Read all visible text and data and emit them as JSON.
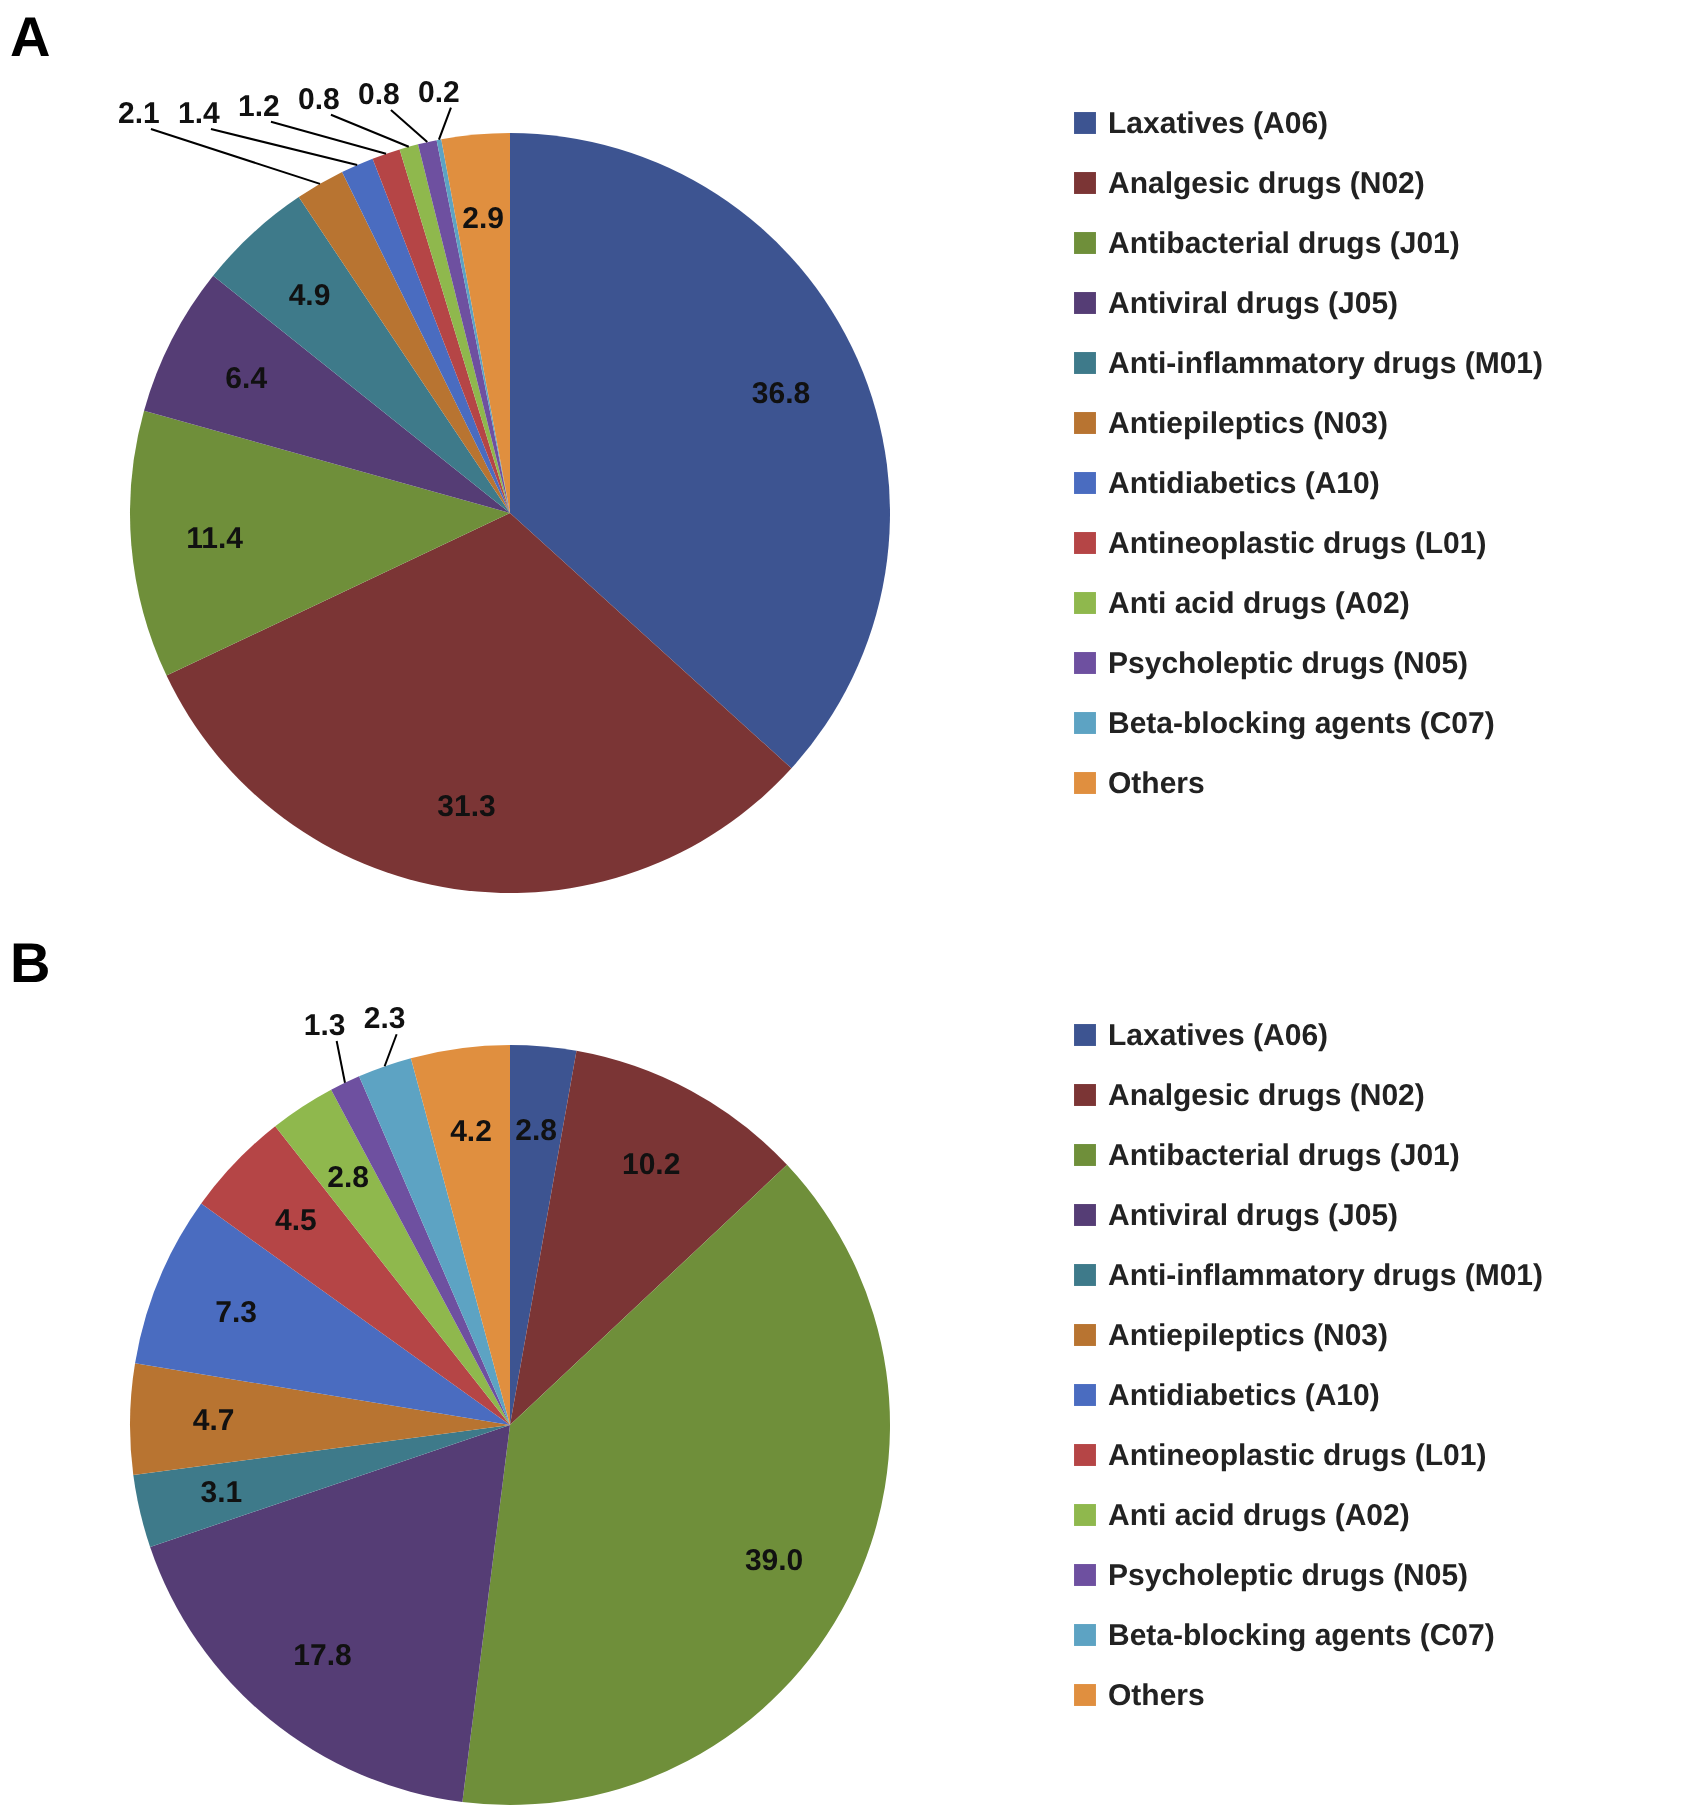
{
  "chart_data": [
    {
      "type": "pie",
      "title": "A",
      "categories": [
        "Laxatives (A06)",
        "Analgesic drugs (N02)",
        "Antibacterial drugs (J01)",
        "Antiviral drugs (J05)",
        "Anti-inflammatory drugs (M01)",
        "Antiepileptics (N03)",
        "Antidiabetics (A10)",
        "Antineoplastic drugs (L01)",
        "Anti acid drugs (A02)",
        "Psycholeptic drugs (N05)",
        "Beta-blocking agents (C07)",
        "Others"
      ],
      "values": [
        36.8,
        31.3,
        11.4,
        6.4,
        4.9,
        2.1,
        1.4,
        1.2,
        0.8,
        0.8,
        0.2,
        2.9
      ],
      "colors": [
        "#3d5491",
        "#7b3535",
        "#6f8f3a",
        "#553d75",
        "#3e7a8a",
        "#b87431",
        "#4a6cc0",
        "#b54546",
        "#8fb84d",
        "#6e50a0",
        "#5da3c3",
        "#e08f3f"
      ],
      "data_labels": true,
      "legend": "right"
    },
    {
      "type": "pie",
      "title": "B",
      "categories": [
        "Laxatives (A06)",
        "Analgesic drugs (N02)",
        "Antibacterial drugs (J01)",
        "Antiviral drugs (J05)",
        "Anti-inflammatory drugs (M01)",
        "Antiepileptics (N03)",
        "Antidiabetics (A10)",
        "Antineoplastic drugs (L01)",
        "Anti acid drugs (A02)",
        "Psycholeptic drugs (N05)",
        "Beta-blocking agents (C07)",
        "Others"
      ],
      "values": [
        2.8,
        10.2,
        39.0,
        17.8,
        3.1,
        4.7,
        7.3,
        4.5,
        2.8,
        1.3,
        2.3,
        4.2
      ],
      "value_labels": [
        "2.8",
        "10.2",
        "39.0",
        "17.8",
        "3.1",
        "4.7",
        "7.3",
        "4.5",
        "2.8",
        "1.3",
        "2.3",
        "4.2"
      ],
      "colors": [
        "#3d5491",
        "#7b3535",
        "#6f8f3a",
        "#553d75",
        "#3e7a8a",
        "#b87431",
        "#4a6cc0",
        "#b54546",
        "#8fb84d",
        "#6e50a0",
        "#5da3c3",
        "#e08f3f"
      ],
      "legend": "right"
    }
  ]
}
